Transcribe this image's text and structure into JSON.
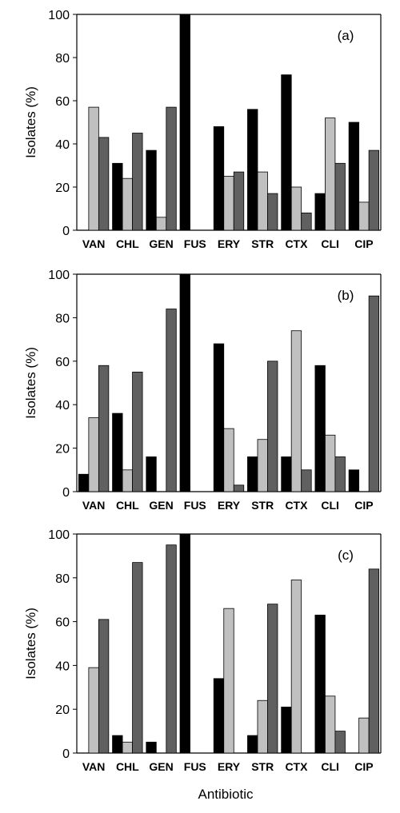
{
  "x_axis_label": "Antibiotic",
  "colors": {
    "series1": "#000000",
    "series2": "#c0c0c0",
    "series3": "#606060"
  },
  "chart_data": [
    {
      "type": "bar",
      "panel_label": "(a)",
      "categories": [
        "VAN",
        "CHL",
        "GEN",
        "FUS",
        "ERY",
        "STR",
        "CTX",
        "CLI",
        "CIP"
      ],
      "series": [
        {
          "values": [
            0,
            31,
            37,
            100,
            48,
            56,
            72,
            17,
            50
          ]
        },
        {
          "values": [
            57,
            24,
            6,
            0,
            25,
            27,
            20,
            52,
            13
          ]
        },
        {
          "values": [
            43,
            45,
            57,
            0,
            27,
            17,
            8,
            31,
            37
          ]
        }
      ],
      "ylabel": "Isolates (%)",
      "ylim": [
        0,
        100
      ],
      "yticks": [
        0,
        20,
        40,
        60,
        80,
        100
      ]
    },
    {
      "type": "bar",
      "panel_label": "(b)",
      "categories": [
        "VAN",
        "CHL",
        "GEN",
        "FUS",
        "ERY",
        "STR",
        "CTX",
        "CLI",
        "CIP"
      ],
      "series": [
        {
          "values": [
            8,
            36,
            16,
            100,
            68,
            16,
            16,
            58,
            10
          ]
        },
        {
          "values": [
            34,
            10,
            0,
            0,
            29,
            24,
            74,
            26,
            0
          ]
        },
        {
          "values": [
            58,
            55,
            84,
            0,
            3,
            60,
            10,
            16,
            90
          ]
        }
      ],
      "ylabel": "Isolates (%)",
      "ylim": [
        0,
        100
      ],
      "yticks": [
        0,
        20,
        40,
        60,
        80,
        100
      ]
    },
    {
      "type": "bar",
      "panel_label": "(c)",
      "categories": [
        "VAN",
        "CHL",
        "GEN",
        "FUS",
        "ERY",
        "STR",
        "CTX",
        "CLI",
        "CIP"
      ],
      "series": [
        {
          "values": [
            0,
            8,
            5,
            100,
            34,
            8,
            21,
            63,
            0
          ]
        },
        {
          "values": [
            39,
            5,
            0,
            0,
            66,
            24,
            79,
            26,
            16
          ]
        },
        {
          "values": [
            61,
            87,
            95,
            0,
            0,
            68,
            0,
            10,
            84
          ]
        }
      ],
      "ylabel": "Isolates (%)",
      "ylim": [
        0,
        100
      ],
      "yticks": [
        0,
        20,
        40,
        60,
        80,
        100
      ]
    }
  ]
}
